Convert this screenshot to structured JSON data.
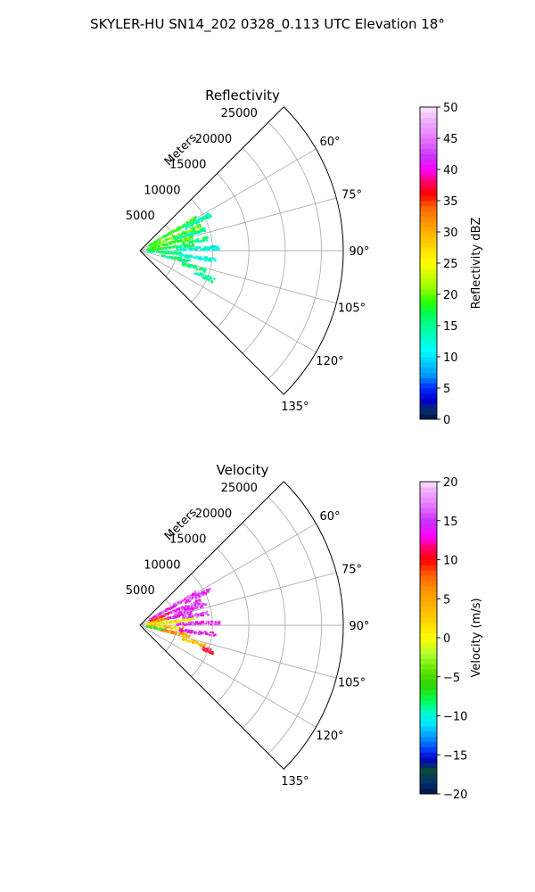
{
  "figure": {
    "suptitle": "SKYLER-HU  SN14_202  0328_0.113 UTC Elevation 18°"
  },
  "chart_data": [
    {
      "type": "polar_sector",
      "title": "Reflectivity",
      "radial_label": "Meters",
      "theta_range_deg": [
        45,
        135
      ],
      "r_max": 28000,
      "r_ticks": [
        5000,
        10000,
        15000,
        20000,
        25000
      ],
      "r_tick_labels": [
        "5000",
        "10000",
        "15000",
        "20000",
        "25000"
      ],
      "theta_ticks": [
        60,
        75,
        90,
        105,
        120,
        135
      ],
      "theta_tick_labels": [
        "60°",
        "75°",
        "90°",
        "105°",
        "120°",
        "135°"
      ],
      "grid": true,
      "colorbar": {
        "label": "Reflectivity dBZ",
        "min": 0,
        "max": 50,
        "ticks": [
          0,
          5,
          10,
          15,
          20,
          25,
          30,
          35,
          40,
          45,
          50
        ],
        "tick_labels": [
          "0",
          "5",
          "10",
          "15",
          "20",
          "25",
          "30",
          "35",
          "40",
          "45",
          "50"
        ]
      },
      "echo_clusters": [
        {
          "azimuth_deg": 60,
          "range_m": [
            1500,
            9000
          ],
          "value": 18
        },
        {
          "azimuth_deg": 63,
          "range_m": [
            7000,
            11000
          ],
          "value": 14
        },
        {
          "azimuth_deg": 68,
          "range_m": [
            1500,
            9000
          ],
          "value": 20
        },
        {
          "azimuth_deg": 72,
          "range_m": [
            5000,
            9500
          ],
          "value": 15
        },
        {
          "azimuth_deg": 76,
          "range_m": [
            1000,
            7500
          ],
          "value": 19
        },
        {
          "azimuth_deg": 80,
          "range_m": [
            6000,
            9500
          ],
          "value": 16
        },
        {
          "azimuth_deg": 84,
          "range_m": [
            1000,
            7500
          ],
          "value": 17
        },
        {
          "azimuth_deg": 88,
          "range_m": [
            5000,
            11000
          ],
          "value": 12
        },
        {
          "azimuth_deg": 94,
          "range_m": [
            1000,
            6000
          ],
          "value": 16
        },
        {
          "azimuth_deg": 97,
          "range_m": [
            5500,
            10500
          ],
          "value": 12
        },
        {
          "azimuth_deg": 102,
          "range_m": [
            3000,
            7000
          ],
          "value": 15
        },
        {
          "azimuth_deg": 107,
          "range_m": [
            6000,
            9500
          ],
          "value": 16
        },
        {
          "azimuth_deg": 112,
          "range_m": [
            8000,
            11000
          ],
          "value": 14
        }
      ]
    },
    {
      "type": "polar_sector",
      "title": "Velocity",
      "radial_label": "Meters",
      "theta_range_deg": [
        45,
        135
      ],
      "r_max": 28000,
      "r_ticks": [
        5000,
        10000,
        15000,
        20000,
        25000
      ],
      "r_tick_labels": [
        "5000",
        "10000",
        "15000",
        "20000",
        "25000"
      ],
      "theta_ticks": [
        60,
        75,
        90,
        105,
        120,
        135
      ],
      "theta_tick_labels": [
        "60°",
        "75°",
        "90°",
        "105°",
        "120°",
        "135°"
      ],
      "grid": true,
      "colorbar": {
        "label": "Velocity (m/s)",
        "min": -20,
        "max": 20,
        "ticks": [
          -20,
          -15,
          -10,
          -5,
          0,
          5,
          10,
          15,
          20
        ],
        "tick_labels": [
          "−20",
          "−15",
          "−10",
          "−5",
          "0",
          "5",
          "10",
          "15",
          "20"
        ]
      },
      "echo_clusters": [
        {
          "azimuth_deg": 60,
          "range_m": [
            1500,
            9000
          ],
          "value": 15
        },
        {
          "azimuth_deg": 63,
          "range_m": [
            7000,
            11000
          ],
          "value": 15
        },
        {
          "azimuth_deg": 68,
          "range_m": [
            1500,
            4500
          ],
          "value": 10
        },
        {
          "azimuth_deg": 68,
          "range_m": [
            4500,
            9000
          ],
          "value": 15
        },
        {
          "azimuth_deg": 72,
          "range_m": [
            5000,
            9500
          ],
          "value": 15
        },
        {
          "azimuth_deg": 76,
          "range_m": [
            1000,
            4000
          ],
          "value": 5
        },
        {
          "azimuth_deg": 76,
          "range_m": [
            4000,
            7500
          ],
          "value": 15
        },
        {
          "azimuth_deg": 80,
          "range_m": [
            6000,
            9500
          ],
          "value": 15
        },
        {
          "azimuth_deg": 84,
          "range_m": [
            1000,
            7500
          ],
          "value": 0
        },
        {
          "azimuth_deg": 88,
          "range_m": [
            5000,
            11000
          ],
          "value": 15
        },
        {
          "azimuth_deg": 94,
          "range_m": [
            1000,
            6000
          ],
          "value": 3
        },
        {
          "azimuth_deg": 97,
          "range_m": [
            5500,
            10500
          ],
          "value": 14
        },
        {
          "azimuth_deg": 100,
          "range_m": [
            1000,
            3500
          ],
          "value": -6
        },
        {
          "azimuth_deg": 102,
          "range_m": [
            3000,
            7000
          ],
          "value": 5
        },
        {
          "azimuth_deg": 107,
          "range_m": [
            6000,
            9500
          ],
          "value": 3
        },
        {
          "azimuth_deg": 110,
          "range_m": [
            9000,
            11000
          ],
          "value": 10
        }
      ]
    }
  ]
}
